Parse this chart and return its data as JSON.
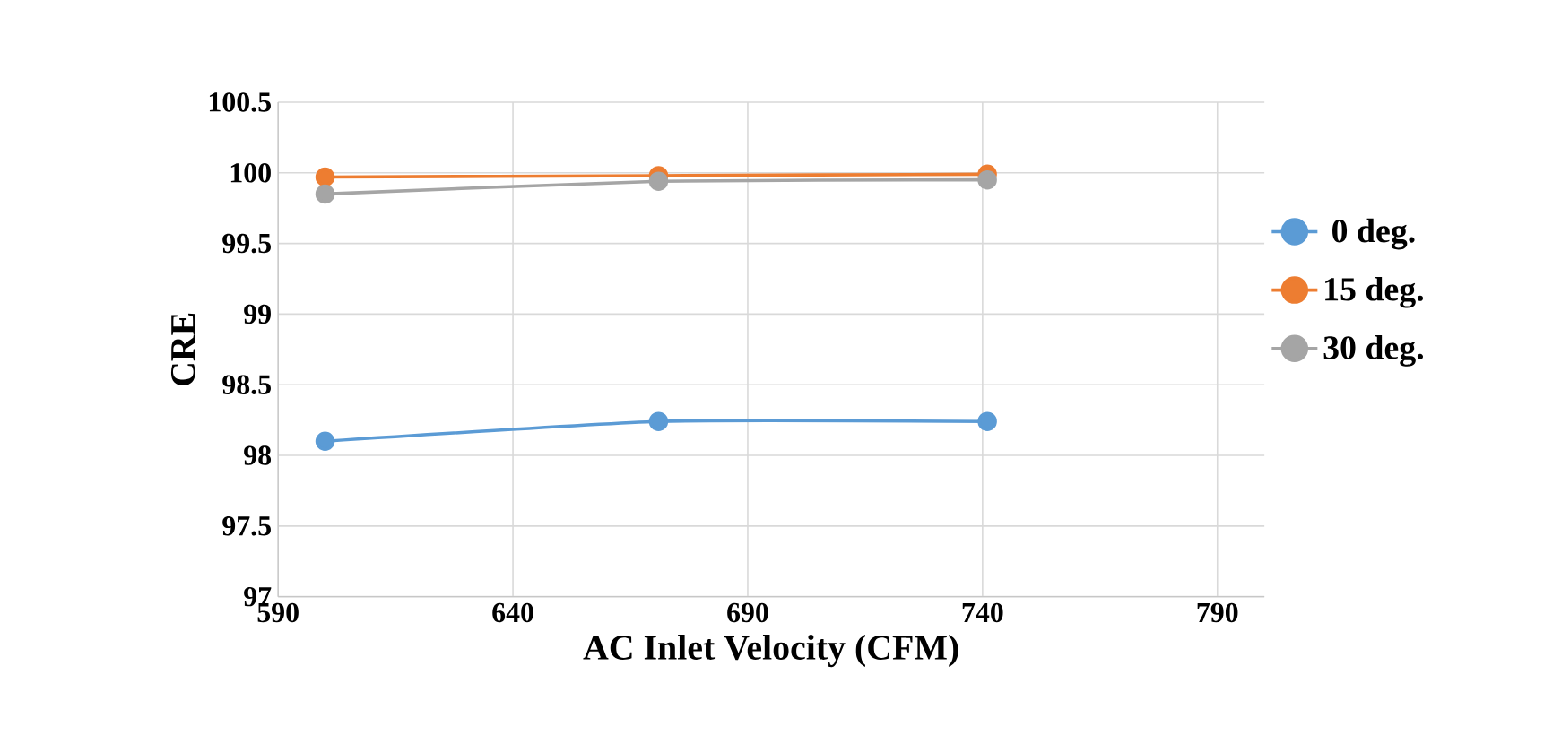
{
  "chart_data": {
    "type": "line",
    "xlabel": "AC Inlet Velocity (CFM)",
    "ylabel": "CRE",
    "x": [
      600,
      671,
      741
    ],
    "series": [
      {
        "name": "0 deg.",
        "color": "#5b9bd5",
        "values": [
          98.1,
          98.24,
          98.24
        ]
      },
      {
        "name": "15 deg.",
        "color": "#ed7d31",
        "values": [
          99.97,
          99.98,
          99.99
        ]
      },
      {
        "name": "30 deg.",
        "color": "#a5a5a5",
        "values": [
          99.85,
          99.94,
          99.95
        ]
      }
    ],
    "xlim": [
      590,
      800
    ],
    "ylim": [
      97,
      100.5
    ],
    "xticks": [
      590,
      640,
      690,
      740,
      790
    ],
    "yticks": [
      97,
      97.5,
      98,
      98.5,
      99,
      99.5,
      100,
      100.5
    ],
    "grid": true,
    "legend": "right",
    "marker": "circle",
    "line_style": "solid"
  }
}
